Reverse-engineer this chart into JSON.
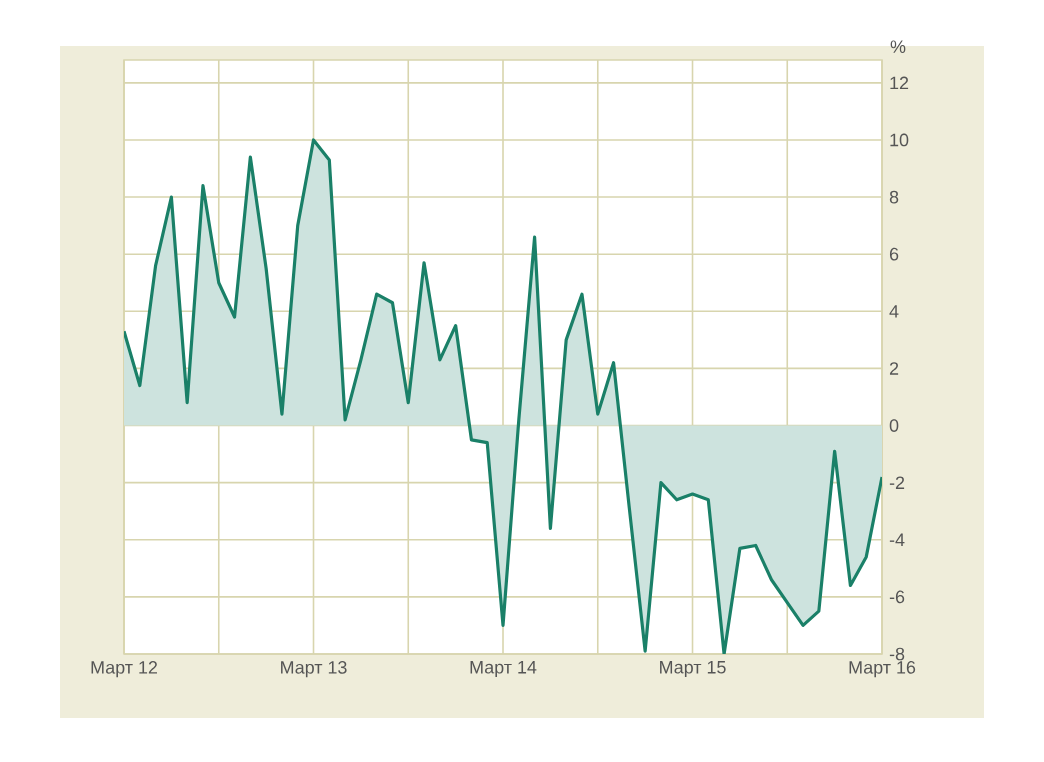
{
  "chart_data": {
    "type": "area",
    "ylabel": "%",
    "color": "#1a8068",
    "x": [
      "2012-03",
      "2012-04",
      "2012-05",
      "2012-06",
      "2012-07",
      "2012-08",
      "2012-09",
      "2012-10",
      "2012-11",
      "2012-12",
      "2013-01",
      "2013-02",
      "2013-03",
      "2013-04",
      "2013-05",
      "2013-06",
      "2013-07",
      "2013-08",
      "2013-09",
      "2013-10",
      "2013-11",
      "2013-12",
      "2014-01",
      "2014-02",
      "2014-03",
      "2014-04",
      "2014-05",
      "2014-06",
      "2014-07",
      "2014-08",
      "2014-09",
      "2014-10",
      "2014-11",
      "2014-12",
      "2015-01",
      "2015-02",
      "2015-03",
      "2015-04",
      "2015-05",
      "2015-06",
      "2015-07",
      "2015-08",
      "2015-09",
      "2015-10",
      "2015-11",
      "2015-12",
      "2016-01",
      "2016-02",
      "2016-03"
    ],
    "values": [
      3.3,
      1.4,
      5.6,
      8.0,
      0.8,
      8.4,
      5.0,
      3.8,
      9.4,
      5.5,
      0.4,
      7.0,
      10.0,
      9.3,
      0.2,
      2.3,
      4.6,
      4.3,
      0.8,
      5.7,
      2.3,
      3.5,
      -0.5,
      -0.6,
      -7.0,
      0.2,
      6.6,
      -3.6,
      3.0,
      4.6,
      0.4,
      2.2,
      -2.9,
      -7.9,
      -2.0,
      -2.6,
      -2.4,
      -2.6,
      -8.0,
      -4.3,
      -4.2,
      -5.4,
      -6.2,
      -7.0,
      -6.5,
      -0.9,
      -5.6,
      -4.6,
      -1.8
    ],
    "xlim": [
      "2012-03",
      "2016-03"
    ],
    "xticks": [
      {
        "value": "2012-03",
        "label": "Март 12"
      },
      {
        "value": "2012-09",
        "label": null
      },
      {
        "value": "2013-03",
        "label": "Март 13"
      },
      {
        "value": "2013-09",
        "label": null
      },
      {
        "value": "2014-03",
        "label": "Март 14"
      },
      {
        "value": "2014-09",
        "label": null
      },
      {
        "value": "2015-03",
        "label": "Март 15"
      },
      {
        "value": "2015-09",
        "label": null
      },
      {
        "value": "2016-03",
        "label": "Март 16"
      }
    ],
    "ylim": [
      -8,
      12.8
    ],
    "yticks": [
      -8,
      -6,
      -4,
      -2,
      0,
      2,
      4,
      6,
      8,
      10,
      12
    ],
    "grid": true,
    "marker": "none",
    "line_style": "solid"
  }
}
